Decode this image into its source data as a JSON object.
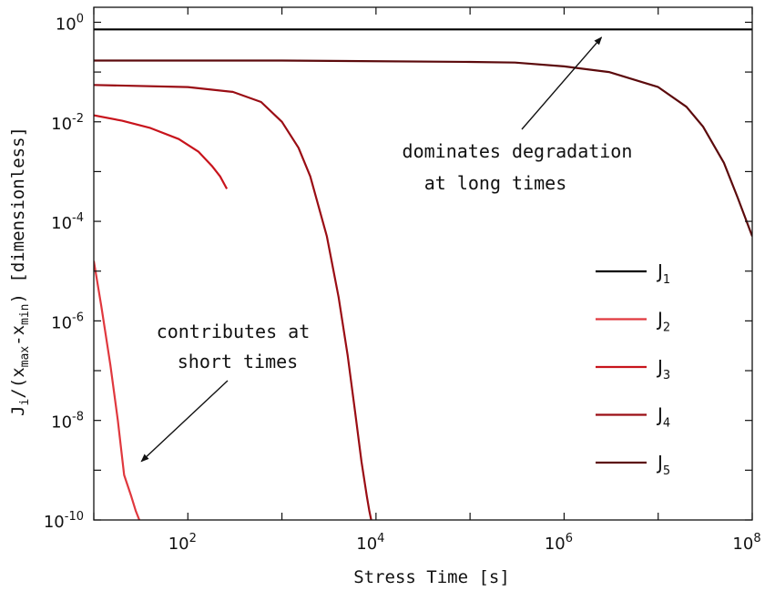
{
  "chart_data": {
    "type": "line",
    "xlabel": "Stress Time [s]",
    "ylabel": {
      "prefix": "J",
      "sub_i": "i",
      "mid1": "/(x",
      "sub_max": "max",
      "mid2": "-x",
      "sub_min": "min",
      "suffix": ")  [dimensionless]"
    },
    "x_scale": "log",
    "y_scale": "log",
    "xlim": [
      10,
      100000000
    ],
    "ylim": [
      1e-10,
      2
    ],
    "x_ticks": [
      {
        "value": 100,
        "base": "10",
        "exp": "2"
      },
      {
        "value": 10000,
        "base": "10",
        "exp": "4"
      },
      {
        "value": 1000000,
        "base": "10",
        "exp": "6"
      },
      {
        "value": 100000000,
        "base": "10",
        "exp": "8"
      }
    ],
    "y_ticks": [
      {
        "value": 1,
        "base": "10",
        "exp": "0"
      },
      {
        "value": 0.01,
        "base": "10",
        "exp": "-2"
      },
      {
        "value": 0.0001,
        "base": "10",
        "exp": "-4"
      },
      {
        "value": 1e-06,
        "base": "10",
        "exp": "-6"
      },
      {
        "value": 1e-08,
        "base": "10",
        "exp": "-8"
      },
      {
        "value": 1e-10,
        "base": "10",
        "exp": "-10"
      }
    ],
    "legend_position": "right",
    "series": [
      {
        "name": "J",
        "sub": "1",
        "color": "#000000",
        "x": [
          10,
          1000,
          100000,
          10000000,
          100000000
        ],
        "y": [
          0.72,
          0.72,
          0.72,
          0.72,
          0.72
        ]
      },
      {
        "name": "J",
        "sub": "2",
        "color": "#e0383e",
        "x": [
          10,
          12,
          15,
          18,
          21,
          25,
          28,
          30.5
        ],
        "y": [
          1.6e-05,
          2e-06,
          1.3e-07,
          1e-08,
          8e-10,
          3e-10,
          1.5e-10,
          1e-10
        ]
      },
      {
        "name": "J",
        "sub": "3",
        "color": "#c8141c",
        "x": [
          10,
          20,
          40,
          80,
          130,
          180,
          220,
          260
        ],
        "y": [
          0.0135,
          0.0105,
          0.0075,
          0.0045,
          0.0025,
          0.0013,
          0.0008,
          0.00045
        ]
      },
      {
        "name": "J",
        "sub": "4",
        "color": "#9a0d14",
        "x": [
          10,
          100,
          300,
          600,
          1000,
          1500,
          2000,
          3000,
          4000,
          5000,
          6000,
          7000,
          8000,
          8500,
          8900
        ],
        "y": [
          0.055,
          0.05,
          0.04,
          0.025,
          0.01,
          0.003,
          0.0008,
          5e-05,
          3e-06,
          2e-07,
          1.5e-08,
          1.5e-09,
          3e-10,
          1.5e-10,
          1e-10
        ]
      },
      {
        "name": "J",
        "sub": "5",
        "color": "#5c0a0c",
        "x": [
          10,
          1000,
          100000,
          300000,
          1000000,
          3000000,
          10000000,
          20000000,
          30000000,
          50000000,
          70000000,
          100000000
        ],
        "y": [
          0.17,
          0.17,
          0.16,
          0.155,
          0.13,
          0.1,
          0.05,
          0.02,
          0.008,
          0.0015,
          0.0003,
          5e-05
        ]
      }
    ],
    "annotations": [
      {
        "lines": [
          "dominates degradation",
          "at long times"
        ],
        "arrow_to": {
          "x": 2500000,
          "y": 0.5
        }
      },
      {
        "lines": [
          "contributes at",
          "short times"
        ],
        "arrow_to": {
          "x": 32,
          "y": 1.5e-09
        }
      }
    ]
  }
}
